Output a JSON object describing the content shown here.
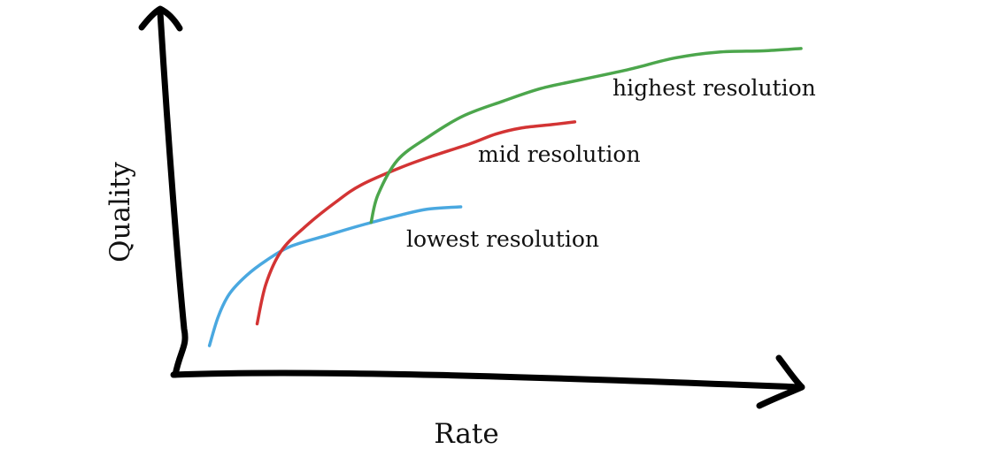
{
  "chart_data": {
    "type": "line",
    "title": "",
    "xlabel": "Rate",
    "ylabel": "Quality",
    "xlim": [
      0,
      100
    ],
    "ylim": [
      0,
      100
    ],
    "grid": false,
    "legend": "none",
    "series": [
      {
        "name": "lowest resolution",
        "color": "#4aa8e0",
        "x": [
          5.6,
          7.0,
          8.8,
          11.5,
          14.6,
          18.5,
          24.4,
          30.5,
          36.0,
          40.4,
          45.7
        ],
        "y": [
          8.8,
          17.6,
          24.5,
          30.0,
          34.5,
          38.8,
          42.2,
          45.6,
          48.3,
          50.1,
          50.8
        ]
      },
      {
        "name": "mid resolution",
        "color": "#d33434",
        "x": [
          13.2,
          14.6,
          17.0,
          20.7,
          25.8,
          29.8,
          36.0,
          40.9,
          47.2,
          51.4,
          55.5,
          60.3,
          63.9
        ],
        "y": [
          15.4,
          27.4,
          37.3,
          44.5,
          52.3,
          57.4,
          62.6,
          66.0,
          69.9,
          72.9,
          74.7,
          75.7,
          76.5
        ]
      },
      {
        "name": "highest resolution",
        "color": "#4ca64c",
        "x": [
          31.4,
          32.5,
          35.6,
          40.4,
          46.1,
          52.5,
          58.5,
          65.0,
          72.6,
          79.8,
          86.8,
          94.1,
          100.0
        ],
        "y": [
          46.1,
          54.5,
          64.9,
          71.8,
          78.3,
          82.8,
          86.6,
          89.3,
          92.4,
          95.8,
          97.6,
          98.0,
          98.7
        ]
      }
    ],
    "annotations": [
      {
        "text": "lowest resolution",
        "series": "lowest resolution"
      },
      {
        "text": "mid resolution",
        "series": "mid resolution"
      },
      {
        "text": "highest resolution",
        "series": "highest resolution"
      }
    ]
  }
}
